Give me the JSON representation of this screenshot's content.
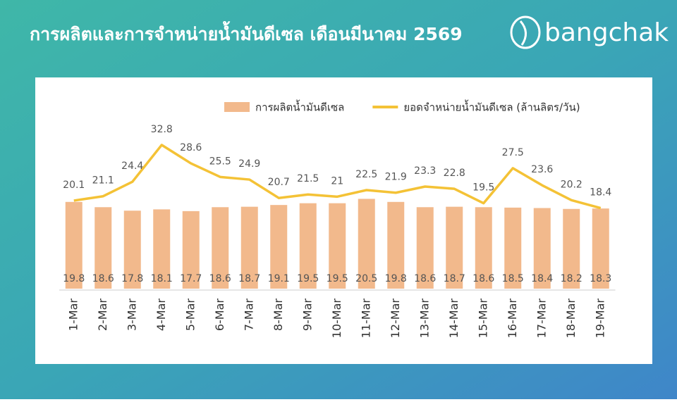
{
  "header": {
    "brand": "bangchak"
  },
  "chart_data": {
    "type": "combo",
    "title": "การผลิตและการจำหน่ายน้ำมันดีเซล เดือนมีนาคม 2569",
    "categories": [
      "1-Mar",
      "2-Mar",
      "3-Mar",
      "4-Mar",
      "5-Mar",
      "6-Mar",
      "7-Mar",
      "8-Mar",
      "9-Mar",
      "10-Mar",
      "11-Mar",
      "12-Mar",
      "13-Mar",
      "14-Mar",
      "15-Mar",
      "16-Mar",
      "17-Mar",
      "18-Mar",
      "19-Mar"
    ],
    "series": [
      {
        "name": "การผลิตน้ำมันดีเซล",
        "type": "bar",
        "color": "#f2b98c",
        "values": [
          19.8,
          18.6,
          17.8,
          18.1,
          17.7,
          18.6,
          18.7,
          19.1,
          19.5,
          19.5,
          20.5,
          19.8,
          18.6,
          18.7,
          18.6,
          18.5,
          18.4,
          18.2,
          18.3
        ]
      },
      {
        "name": "ยอดจำหน่ายน้ำมันดีเซล (ล้านลิตร/วัน)",
        "type": "line",
        "color": "#f4c236",
        "values": [
          20.1,
          21.1,
          24.4,
          32.8,
          28.6,
          25.5,
          24.9,
          20.7,
          21.5,
          21,
          22.5,
          21.9,
          23.3,
          22.8,
          19.5,
          27.5,
          23.6,
          20.2,
          18.4
        ]
      }
    ],
    "ylim": [
      0,
      45
    ],
    "legend": "top"
  }
}
